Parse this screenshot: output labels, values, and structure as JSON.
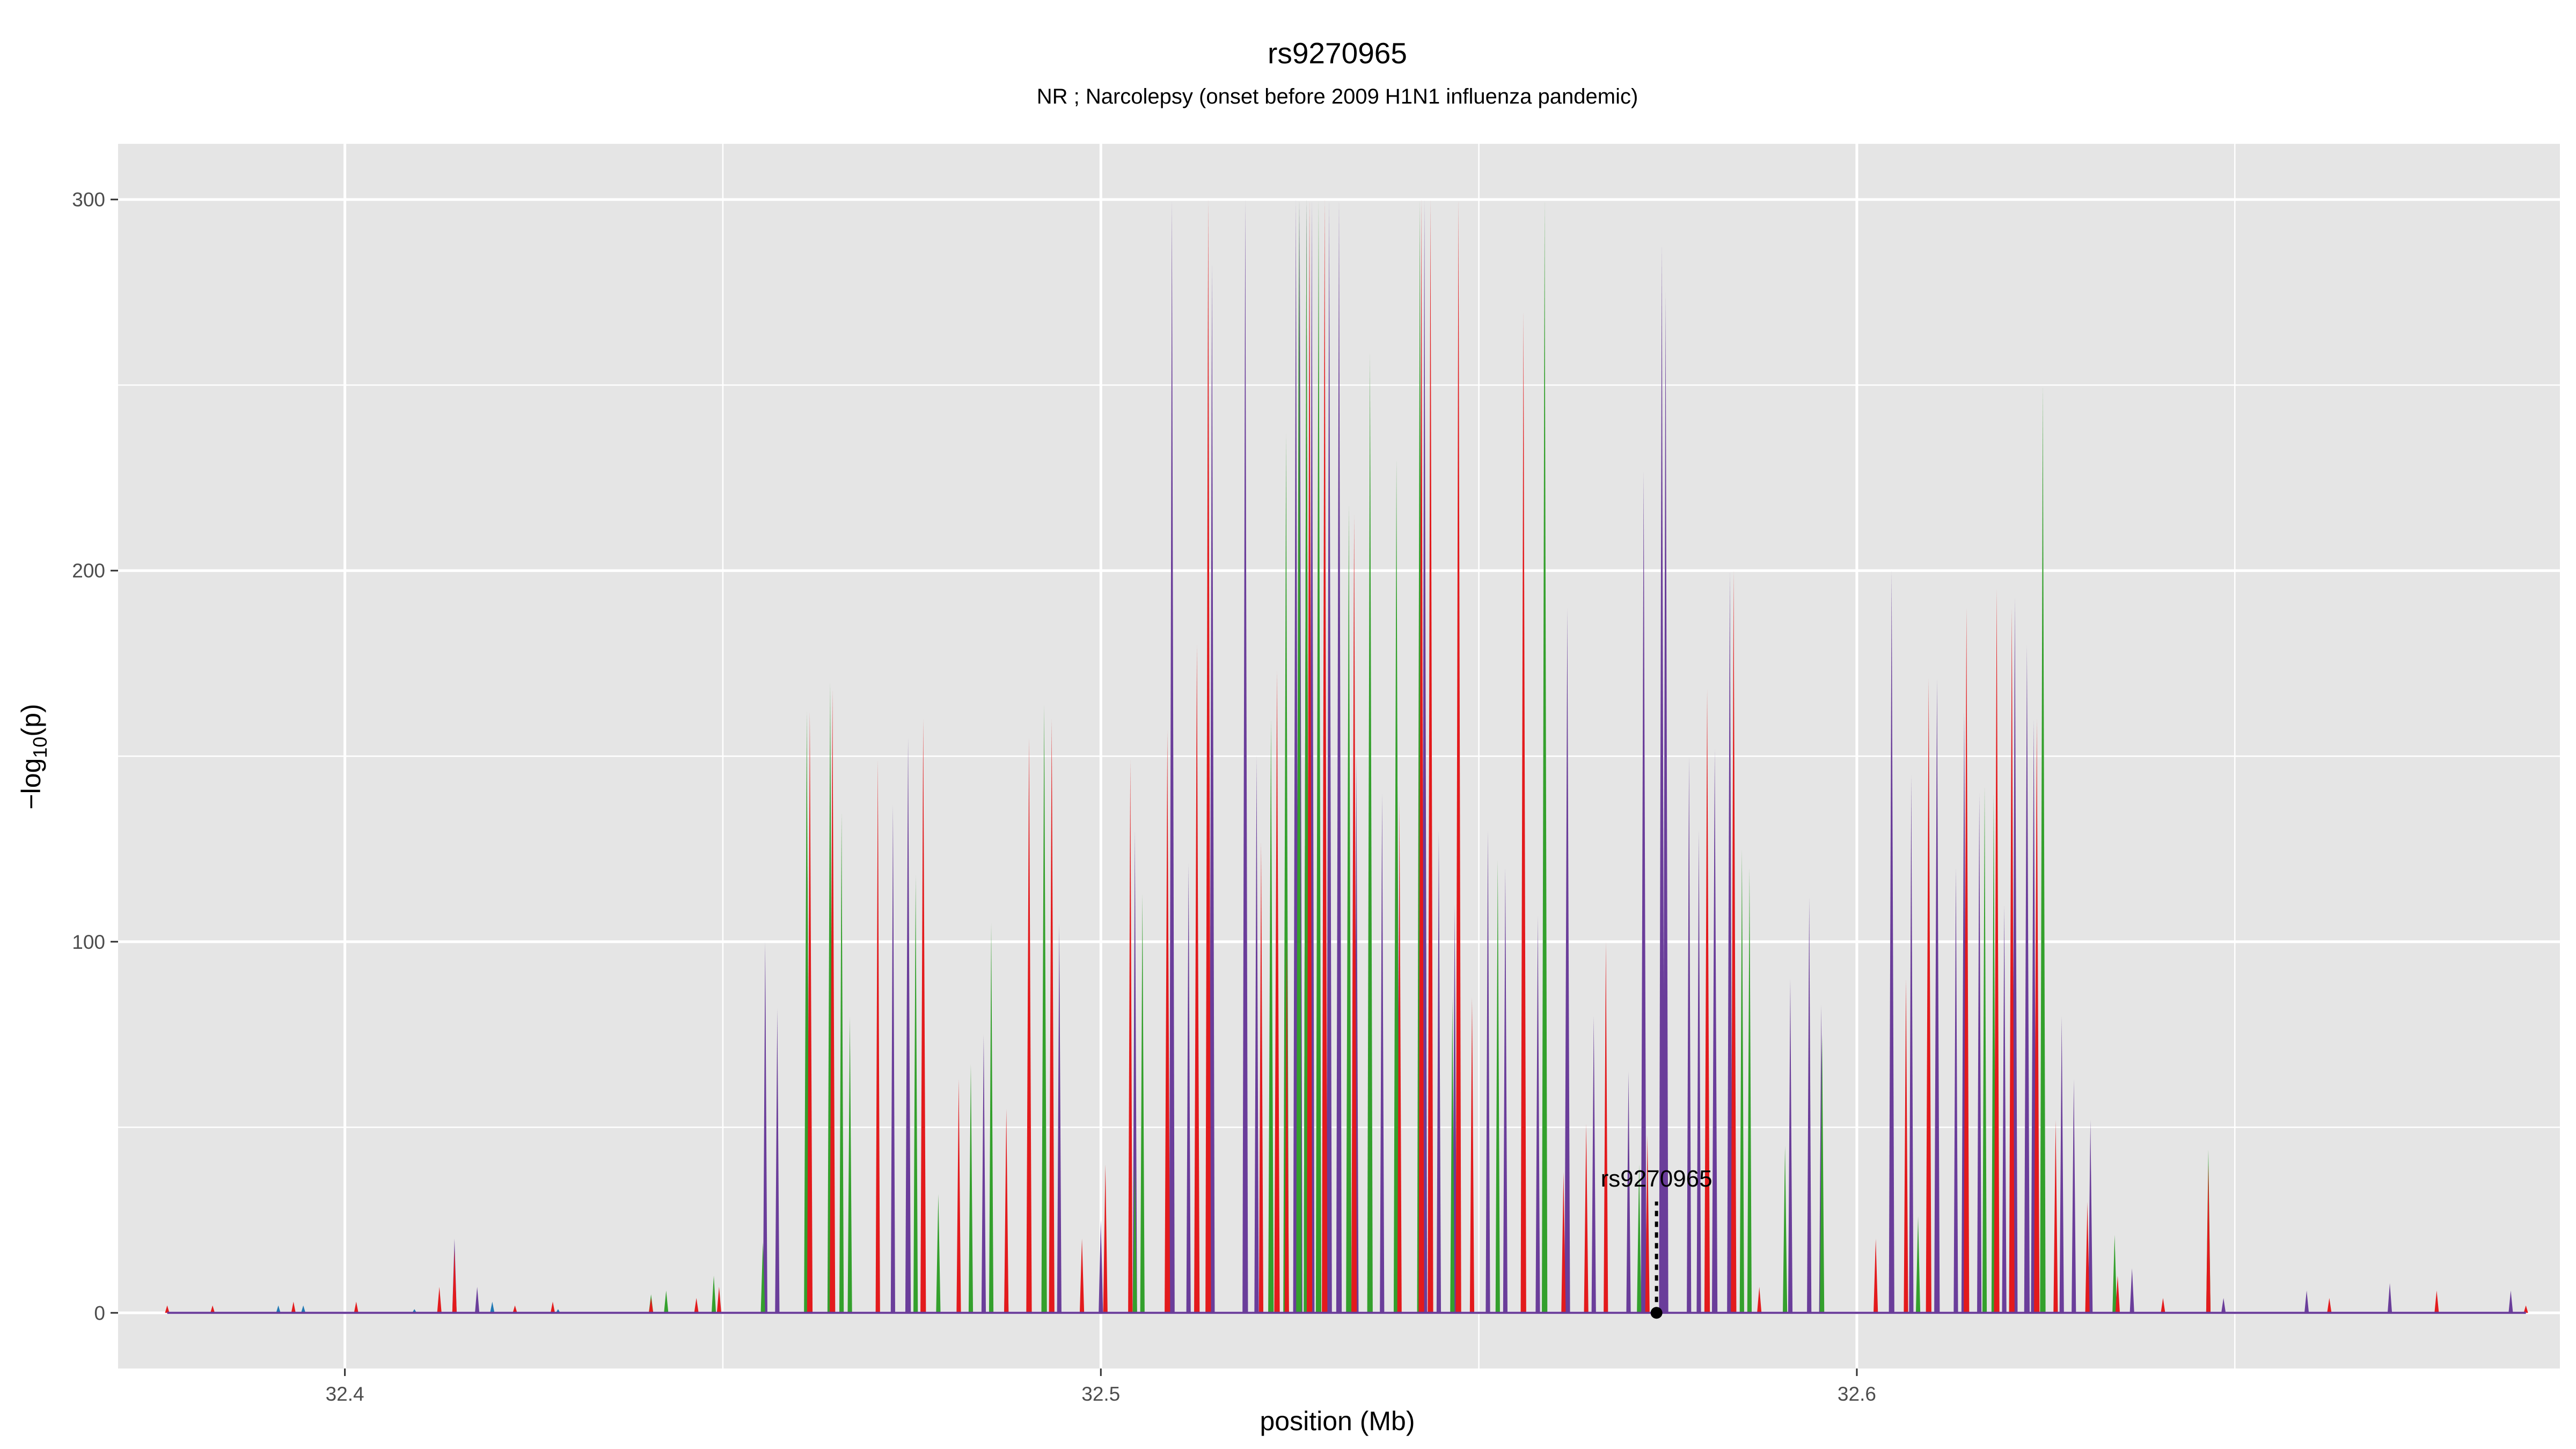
{
  "chart_data": {
    "type": "area",
    "title": "rs9270965",
    "subtitle": "NR ; Narcolepsy (onset before 2009 H1N1 influenza pandemic)",
    "xlabel": "position (Mb)",
    "ylabel": "-log10(p)",
    "xlim": [
      32.37,
      32.693
    ],
    "ylim": [
      -15,
      315
    ],
    "x_ticks": [
      "32.4",
      "32.5",
      "32.6"
    ],
    "y_ticks": [
      "0",
      "100",
      "200",
      "300"
    ],
    "grid": true,
    "background": "#e5e5e5",
    "series": [
      {
        "color": "#6a3d9a",
        "peaks": [
          [
            32.4145,
            20
          ],
          [
            32.4175,
            7
          ],
          [
            32.4556,
            100
          ],
          [
            32.4572,
            82
          ],
          [
            32.4612,
            120
          ],
          [
            32.4725,
            137
          ],
          [
            32.4745,
            155
          ],
          [
            32.4845,
            75
          ],
          [
            32.4875,
            42
          ],
          [
            32.4945,
            105
          ],
          [
            32.5,
            25
          ],
          [
            32.5045,
            130
          ],
          [
            32.5094,
            300
          ],
          [
            32.5116,
            121
          ],
          [
            32.5147,
            283
          ],
          [
            32.5191,
            300
          ],
          [
            32.5206,
            150
          ],
          [
            32.5258,
            300
          ],
          [
            32.5263,
            300
          ],
          [
            32.5272,
            300
          ],
          [
            32.5279,
            300
          ],
          [
            32.5302,
            300
          ],
          [
            32.5315,
            300
          ],
          [
            32.5338,
            150
          ],
          [
            32.5372,
            140
          ],
          [
            32.5392,
            160
          ],
          [
            32.5428,
            300
          ],
          [
            32.5447,
            130
          ],
          [
            32.5468,
            110
          ],
          [
            32.5512,
            130
          ],
          [
            32.5535,
            120
          ],
          [
            32.5578,
            107
          ],
          [
            32.5617,
            190
          ],
          [
            32.5652,
            80
          ],
          [
            32.5698,
            65
          ],
          [
            32.5718,
            227
          ],
          [
            32.5742,
            288
          ],
          [
            32.5747,
            275
          ],
          [
            32.5778,
            150
          ],
          [
            32.5791,
            130
          ],
          [
            32.5812,
            152
          ],
          [
            32.5832,
            200
          ],
          [
            32.5912,
            90
          ],
          [
            32.5937,
            112
          ],
          [
            32.5953,
            83
          ],
          [
            32.6046,
            200
          ],
          [
            32.6072,
            145
          ],
          [
            32.6106,
            171
          ],
          [
            32.6131,
            120
          ],
          [
            32.6142,
            162
          ],
          [
            32.6162,
            140
          ],
          [
            32.6195,
            110
          ],
          [
            32.6209,
            193
          ],
          [
            32.6225,
            180
          ],
          [
            32.6234,
            160
          ],
          [
            32.6271,
            80
          ],
          [
            32.6287,
            63
          ],
          [
            32.6309,
            52
          ],
          [
            32.6364,
            12
          ],
          [
            32.6485,
            4
          ],
          [
            32.6595,
            6
          ],
          [
            32.6705,
            8
          ],
          [
            32.6865,
            6
          ]
        ]
      },
      {
        "color": "#33a02c",
        "peaks": [
          [
            32.4405,
            5
          ],
          [
            32.4425,
            6
          ],
          [
            32.4488,
            10
          ],
          [
            32.4553,
            19
          ],
          [
            32.4611,
            162
          ],
          [
            32.4642,
            170
          ],
          [
            32.4657,
            135
          ],
          [
            32.4668,
            80
          ],
          [
            32.4755,
            118
          ],
          [
            32.4785,
            32
          ],
          [
            32.4828,
            67
          ],
          [
            32.4855,
            105
          ],
          [
            32.4925,
            164
          ],
          [
            32.5045,
            40
          ],
          [
            32.5055,
            113
          ],
          [
            32.5225,
            160
          ],
          [
            32.5245,
            237
          ],
          [
            32.5262,
            300
          ],
          [
            32.5272,
            300
          ],
          [
            32.5288,
            300
          ],
          [
            32.5328,
            218
          ],
          [
            32.5356,
            259
          ],
          [
            32.5391,
            230
          ],
          [
            32.5422,
            300
          ],
          [
            32.5465,
            85
          ],
          [
            32.5525,
            122
          ],
          [
            32.5587,
            300
          ],
          [
            32.5712,
            40
          ],
          [
            32.5848,
            125
          ],
          [
            32.5858,
            120
          ],
          [
            32.6081,
            26
          ],
          [
            32.5905,
            45
          ],
          [
            32.5954,
            75
          ],
          [
            32.6169,
            142
          ],
          [
            32.6181,
            140
          ],
          [
            32.6246,
            250
          ],
          [
            32.6341,
            21
          ],
          [
            32.6465,
            44
          ]
        ]
      },
      {
        "color": "#e31a1c",
        "peaks": [
          [
            32.3765,
            2
          ],
          [
            32.3825,
            2
          ],
          [
            32.3932,
            3
          ],
          [
            32.4015,
            3
          ],
          [
            32.4125,
            7
          ],
          [
            32.4145,
            17
          ],
          [
            32.4225,
            2
          ],
          [
            32.4275,
            3
          ],
          [
            32.4405,
            4
          ],
          [
            32.4465,
            4
          ],
          [
            32.4495,
            7
          ],
          [
            32.4615,
            162
          ],
          [
            32.4645,
            168
          ],
          [
            32.4705,
            149
          ],
          [
            32.4765,
            160
          ],
          [
            32.4812,
            63
          ],
          [
            32.4875,
            55
          ],
          [
            32.4905,
            155
          ],
          [
            32.4935,
            160
          ],
          [
            32.4975,
            20
          ],
          [
            32.5006,
            40
          ],
          [
            32.5039,
            149
          ],
          [
            32.5088,
            157
          ],
          [
            32.5127,
            180
          ],
          [
            32.5142,
            300
          ],
          [
            32.5212,
            127
          ],
          [
            32.5233,
            173
          ],
          [
            32.5246,
            100
          ],
          [
            32.5276,
            300
          ],
          [
            32.5296,
            300
          ],
          [
            32.5335,
            215
          ],
          [
            32.5395,
            138
          ],
          [
            32.5424,
            300
          ],
          [
            32.5436,
            300
          ],
          [
            32.5473,
            300
          ],
          [
            32.5491,
            85
          ],
          [
            32.5559,
            270
          ],
          [
            32.5612,
            38
          ],
          [
            32.5642,
            51
          ],
          [
            32.5668,
            100
          ],
          [
            32.5723,
            48
          ],
          [
            32.5802,
            168
          ],
          [
            32.5837,
            200
          ],
          [
            32.5871,
            7
          ],
          [
            32.6025,
            20
          ],
          [
            32.6065,
            90
          ],
          [
            32.6095,
            171
          ],
          [
            32.6145,
            190
          ],
          [
            32.6185,
            195
          ],
          [
            32.6205,
            190
          ],
          [
            32.6238,
            160
          ],
          [
            32.6263,
            52
          ],
          [
            32.6305,
            30
          ],
          [
            32.6345,
            10
          ],
          [
            32.6405,
            4
          ],
          [
            32.6465,
            40
          ],
          [
            32.6625,
            4
          ],
          [
            32.6767,
            6
          ],
          [
            32.6885,
            2
          ]
        ]
      },
      {
        "color": "#1f78b4",
        "peaks": [
          [
            32.3912,
            2
          ],
          [
            32.3945,
            2
          ],
          [
            32.4092,
            1
          ],
          [
            32.4195,
            3
          ],
          [
            32.4282,
            1
          ]
        ]
      }
    ],
    "highlight": {
      "label": "rs9270965",
      "x": 32.5735,
      "y": 0
    }
  }
}
